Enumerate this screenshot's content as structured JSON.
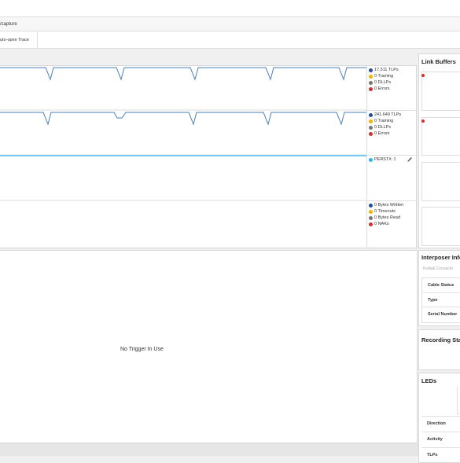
{
  "toolbar": {
    "path": "/capture",
    "button": "uto-open Trace"
  },
  "graphs": [
    {
      "legend": [
        "17,511 TLPs",
        "0 Training",
        "0 DLLPs",
        "0 Errors"
      ]
    },
    {
      "legend": [
        "241,649 TLPs",
        "0 Training",
        "0 DLLPs",
        "0 Errors"
      ]
    },
    {
      "legend": [
        "PERST#: 1"
      ]
    },
    {
      "legend": [
        "0 Bytes Written",
        "0 Timeouts",
        "0 Bytes Read",
        "0 NAKs"
      ]
    }
  ],
  "trigger": {
    "message": "No Trigger In Use"
  },
  "link_buffers": {
    "title": "Link Buffers"
  },
  "interposer": {
    "title": "Interposer Info",
    "connector": "Kodiak Connecto",
    "rows": [
      "Cable Status",
      "Type",
      "Serial Number"
    ]
  },
  "recording": {
    "title": "Recording Stat"
  },
  "leds": {
    "title": "LEDs",
    "rows": [
      "Direction",
      "Activity",
      "TLPs"
    ]
  }
}
